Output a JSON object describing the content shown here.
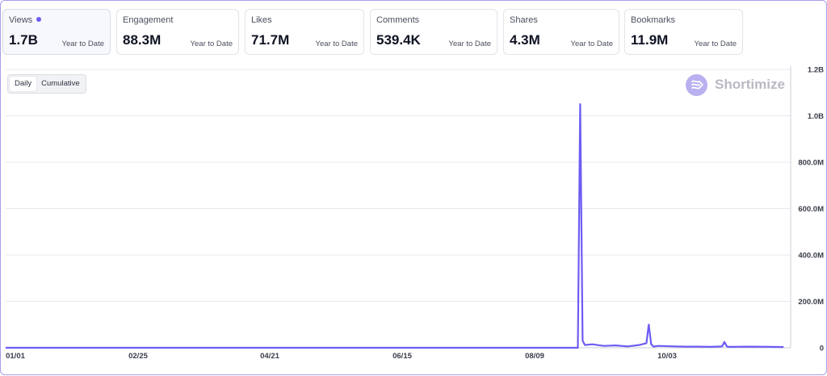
{
  "metrics": [
    {
      "label": "Views",
      "value": "1.7B",
      "period": "Year to Date",
      "active": true
    },
    {
      "label": "Engagement",
      "value": "88.3M",
      "period": "Year to Date"
    },
    {
      "label": "Likes",
      "value": "71.7M",
      "period": "Year to Date"
    },
    {
      "label": "Comments",
      "value": "539.4K",
      "period": "Year to Date"
    },
    {
      "label": "Shares",
      "value": "4.3M",
      "period": "Year to Date"
    },
    {
      "label": "Bookmarks",
      "value": "11.9M",
      "period": "Year to Date"
    }
  ],
  "toggle": {
    "daily": "Daily",
    "cumulative": "Cumulative",
    "selected": "Daily"
  },
  "brand": {
    "name": "Shortimize"
  },
  "colors": {
    "accent": "#6d5cf3",
    "grid": "#e6e8ef"
  },
  "chart_data": {
    "type": "line",
    "x": [
      "01/01",
      "01/11",
      "01/21",
      "01/31",
      "02/10",
      "02/25",
      "03/10",
      "03/25",
      "04/05",
      "04/21",
      "05/05",
      "05/20",
      "06/01",
      "06/15",
      "07/01",
      "07/15",
      "07/25",
      "08/09",
      "08/20",
      "08/29",
      "08/30",
      "08/31",
      "09/01",
      "09/02",
      "09/05",
      "09/10",
      "09/15",
      "09/20",
      "09/25",
      "09/28",
      "09/29",
      "09/30",
      "10/01",
      "10/03",
      "10/10",
      "10/15",
      "10/20",
      "10/25",
      "10/30",
      "10/31",
      "11/01",
      "11/02",
      "11/10",
      "11/20",
      "11/25"
    ],
    "values": [
      0,
      0,
      0,
      0,
      0,
      0,
      0,
      0,
      0,
      0,
      0,
      0,
      0,
      0,
      0,
      0,
      0,
      0,
      0,
      0,
      0,
      1050000000,
      30000000,
      12000000,
      15000000,
      8000000,
      10000000,
      6000000,
      12000000,
      20000000,
      100000000,
      15000000,
      5000000,
      8000000,
      6000000,
      5000000,
      5000000,
      4000000,
      6000000,
      25000000,
      6000000,
      4000000,
      5000000,
      4000000,
      3000000
    ],
    "x_ticks": [
      "01/01",
      "02/25",
      "04/21",
      "06/15",
      "08/09",
      "10/03"
    ],
    "y_ticks": [
      "0",
      "200.0M",
      "400.0M",
      "600.0M",
      "800.0M",
      "1.0B",
      "1.2B"
    ],
    "ylim": [
      0,
      1200000000
    ],
    "grid": true,
    "y_axis_side": "right"
  }
}
